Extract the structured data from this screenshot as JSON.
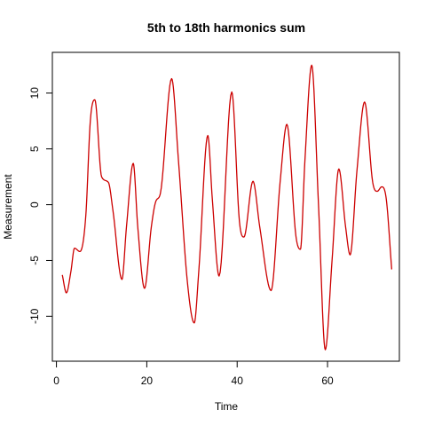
{
  "chart_data": {
    "type": "line",
    "title": "5th to 18th harmonics sum",
    "xlabel": "Time",
    "ylabel": "Measurement",
    "xlim": [
      -0.9,
      75.9
    ],
    "ylim": [
      -14.03,
      13.65
    ],
    "xticks": [
      0,
      20,
      40,
      60
    ],
    "yticks": [
      -10,
      -5,
      0,
      5,
      10
    ],
    "grid": false,
    "legend": "none",
    "line_color": "#cc0000",
    "series": [
      {
        "keypoints": [
          [
            1.3,
            -6.3
          ],
          [
            2.2,
            -7.9
          ],
          [
            3.2,
            -6.0
          ],
          [
            4.0,
            -3.9
          ],
          [
            5.2,
            -4.2
          ],
          [
            6.5,
            -1.0
          ],
          [
            7.5,
            7.5
          ],
          [
            8.5,
            9.4
          ],
          [
            10.0,
            2.5
          ],
          [
            11.5,
            2.0
          ],
          [
            12.5,
            -0.5
          ],
          [
            14.5,
            -6.7
          ],
          [
            15.5,
            -2.0
          ],
          [
            17.0,
            3.7
          ],
          [
            18.0,
            -2.0
          ],
          [
            19.5,
            -7.5
          ],
          [
            21.0,
            -2.0
          ],
          [
            22.0,
            0.3
          ],
          [
            23.0,
            1.0
          ],
          [
            25.5,
            11.3
          ],
          [
            27.0,
            4.0
          ],
          [
            29.0,
            -7.0
          ],
          [
            30.5,
            -10.6
          ],
          [
            31.5,
            -6.0
          ],
          [
            33.5,
            6.2
          ],
          [
            34.5,
            0.5
          ],
          [
            36.0,
            -6.4
          ],
          [
            38.8,
            10.1
          ],
          [
            40.5,
            -1.5
          ],
          [
            41.5,
            -2.9
          ],
          [
            43.5,
            2.1
          ],
          [
            45.0,
            -2.0
          ],
          [
            47.5,
            -7.7
          ],
          [
            49.5,
            2.0
          ],
          [
            51.0,
            7.2
          ],
          [
            53.0,
            -2.8
          ],
          [
            54.0,
            -4.0
          ],
          [
            55.0,
            4.0
          ],
          [
            56.5,
            12.5
          ],
          [
            58.0,
            0.0
          ],
          [
            59.5,
            -13.0
          ],
          [
            61.0,
            -5.0
          ],
          [
            62.5,
            3.2
          ],
          [
            64.0,
            -2.0
          ],
          [
            65.0,
            -4.5
          ],
          [
            66.5,
            3.0
          ],
          [
            68.2,
            9.2
          ],
          [
            70.0,
            2.0
          ],
          [
            71.0,
            1.2
          ],
          [
            72.0,
            1.6
          ],
          [
            73.0,
            0.5
          ],
          [
            74.2,
            -5.8
          ]
        ]
      }
    ]
  }
}
